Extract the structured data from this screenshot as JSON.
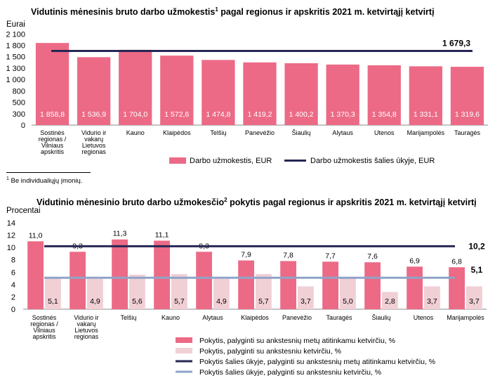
{
  "colors": {
    "pink": "#ec6a86",
    "lightpink": "#f0cfd5",
    "navy": "#262755",
    "bluegray": "#8fa3c8"
  },
  "chart_data": [
    {
      "type": "bar",
      "title": "Vidutinis mėnesinis bruto darbo užmokestis",
      "title_sup": "1",
      "title_rest": " pagal regionus ir apskritis 2021 m. ketvirtąjį ketvirtį",
      "ylabel": "Eurai",
      "ylim": [
        0,
        2100
      ],
      "yticks": [
        "0",
        "300",
        "500",
        "800",
        "1 000",
        "1 300",
        "1 500",
        "1 800",
        "2 100"
      ],
      "ytick_values": [
        0,
        258,
        516,
        774,
        1032,
        1290,
        1548,
        1806,
        2064
      ],
      "categories": [
        [
          "Sostinės",
          "regionas /",
          "Vilniaus",
          "apskritis"
        ],
        [
          "Vidurio ir",
          "vakarų",
          "Lietuvos",
          "regionas"
        ],
        [
          "Kauno"
        ],
        [
          "Klaipėdos"
        ],
        [
          "Telšių"
        ],
        [
          "Panevėžio"
        ],
        [
          "Šiaulių"
        ],
        [
          "Alytaus"
        ],
        [
          "Utenos"
        ],
        [
          "Marijampolės"
        ],
        [
          "Tauragės"
        ]
      ],
      "series": [
        {
          "name": "Darbo užmokestis, EUR",
          "type": "bar",
          "values": [
            1858.8,
            1536.9,
            1704.0,
            1572.6,
            1474.8,
            1419.2,
            1400.2,
            1370.3,
            1354.8,
            1331.1,
            1319.6
          ],
          "labels": [
            "1 858,8",
            "1 536,9",
            "1 704,0",
            "1 572,6",
            "1 474,8",
            "1 419,2",
            "1 400,2",
            "1 370,3",
            "1 354,8",
            "1 331,1",
            "1 319,6"
          ]
        },
        {
          "name": "Darbo užmokestis šalies ūkyje, EUR",
          "type": "line",
          "value": 1679.3,
          "label": "1 679,3"
        }
      ],
      "legend_placement": "bottom",
      "footnote_sup": "1",
      "footnote": " Be individualiųjų įmonių."
    },
    {
      "type": "bar",
      "title": "Vidutinio mėnesinio bruto darbo užmokesčio",
      "title_sup": "2",
      "title_rest": " pokytis pagal regionus ir apskritis 2021 m. ketvirtąjį ketvirtį",
      "ylabel": "Procentai",
      "ylim": [
        0,
        14
      ],
      "yticks": [
        "0",
        "2",
        "4",
        "6",
        "8",
        "10",
        "12",
        "14"
      ],
      "ytick_values": [
        0,
        2,
        4,
        6,
        8,
        10,
        12,
        14
      ],
      "categories": [
        [
          "Sostinės",
          "regionas /",
          "Vilniaus",
          "apskritis"
        ],
        [
          "Vidurio ir",
          "vakarų",
          "Lietuvos",
          "regionas"
        ],
        [
          "Telšių"
        ],
        [
          "Kauno"
        ],
        [
          "Alytaus"
        ],
        [
          "Klaipėdos"
        ],
        [
          "Panevėžio"
        ],
        [
          "Tauragės"
        ],
        [
          "Šiaulių"
        ],
        [
          "Utenos"
        ],
        [
          "Marijampolės"
        ]
      ],
      "series": [
        {
          "name": "Pokytis, palyginti su ankstesnių metų atitinkamu ketvirčiu, %",
          "type": "bar",
          "values": [
            11.0,
            9.3,
            11.3,
            11.1,
            9.3,
            7.9,
            7.8,
            7.7,
            7.6,
            6.9,
            6.8
          ],
          "labels": [
            "11,0",
            "9,3",
            "11,3",
            "11,1",
            "9,3",
            "7,9",
            "7,8",
            "7,7",
            "7,6",
            "6,9",
            "6,8"
          ]
        },
        {
          "name": "Pokytis, palyginti su ankstesniu ketvirčiu,  %",
          "type": "bar",
          "values": [
            5.1,
            4.9,
            5.6,
            5.7,
            4.9,
            5.7,
            3.7,
            5.0,
            2.8,
            3.7,
            3.7
          ],
          "labels": [
            "5,1",
            "4,9",
            "5,6",
            "5,7",
            "4,9",
            "5,7",
            "3,7",
            "5,0",
            "2,8",
            "3,7",
            "3,7"
          ]
        },
        {
          "name": "Pokytis šalies ūkyje, palyginti su ankstesnių metų atitinkamu ketvirčiu, %",
          "type": "line",
          "value": 10.2,
          "label": "10,2"
        },
        {
          "name": "Pokytis šalies ūkyje, palyginti su ankstesniu ketvirčiu,  %",
          "type": "line",
          "value": 5.1,
          "label": "5,1"
        }
      ],
      "legend_placement": "bottom"
    }
  ]
}
